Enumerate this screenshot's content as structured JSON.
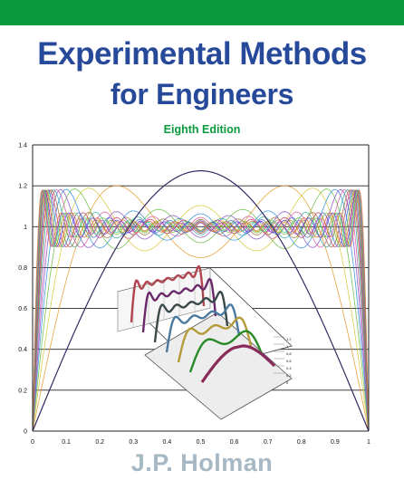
{
  "cover": {
    "title_line1": "Experimental Methods",
    "title_line2": "for Engineers",
    "edition": "Eighth Edition",
    "author": "J.P. Holman",
    "colors": {
      "band": "#0a9a3c",
      "title": "#27499a",
      "edition": "#0a9a3c",
      "author": "#a7b8c5"
    }
  },
  "graph": {
    "x_ticks": [
      "0",
      "0.1",
      "0.2",
      "0.3",
      "0.4",
      "0.5",
      "0.6",
      "0.7",
      "0.8",
      "0.9",
      "1"
    ],
    "y_ticks": [
      "0",
      "0.2",
      "0.4",
      "0.6",
      "0.8",
      "1",
      "1.2",
      "1.4"
    ],
    "inset_ticks": [
      "1.2",
      "1",
      "0.8",
      "0.6",
      "0.4",
      "0.2",
      "0"
    ]
  }
}
